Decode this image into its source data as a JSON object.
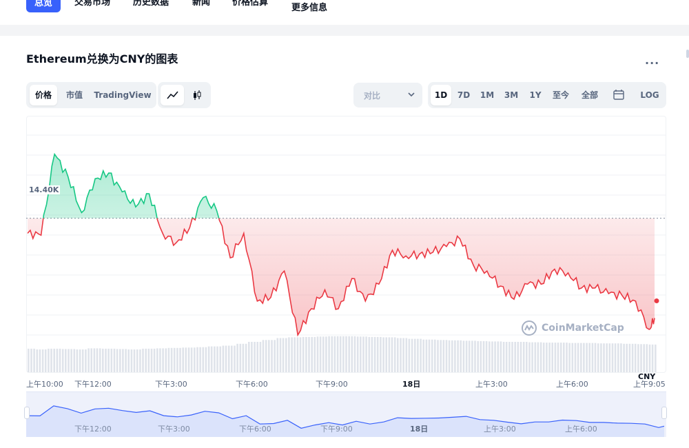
{
  "nav": {
    "items": [
      "总览",
      "交易市场",
      "历史数据",
      "新闻",
      "价格估算",
      "更多信息"
    ],
    "active": 0
  },
  "chart": {
    "title": "Ethereum兑换为CNY的图表",
    "more_label": "...",
    "type_tabs": [
      "价格",
      "市值",
      "TradingView"
    ],
    "compare_label": "对比",
    "range_tabs": [
      "1D",
      "7D",
      "1M",
      "3M",
      "1Y",
      "至今",
      "全部"
    ],
    "log_label": "LOG",
    "price_marker": "14.40K",
    "currency": "CNY",
    "watermark": "CoinMarketCap"
  },
  "colors": {
    "up": "#16c784",
    "down": "#ea3943",
    "accent": "#3861fb",
    "navigator": "#3861fb"
  },
  "icons": {
    "line_chart": "line-chart-icon",
    "candle_chart": "candlestick-icon",
    "calendar": "calendar-icon",
    "compare": "chevron-down-icon",
    "logo": "coinmarketcap-logo-icon"
  },
  "chart_data": {
    "type": "line",
    "x_ticks": [
      "上午10:00",
      "下午12:00",
      "下午3:00",
      "下午6:00",
      "下午9:00",
      "18日",
      "上午3:00",
      "上午6:00",
      "上午9:05"
    ],
    "navigator_ticks": [
      "下午12:00",
      "下午3:00",
      "下午6:00",
      "下午9:00",
      "18日",
      "上午3:00",
      "上午6:00"
    ],
    "reference_price": 14400,
    "y_range": [
      14050,
      14650
    ],
    "x_hours": [
      0,
      0.5,
      1,
      1.5,
      2,
      2.5,
      3,
      3.5,
      4,
      4.5,
      5,
      5.5,
      6,
      6.5,
      7,
      7.5,
      8,
      8.5,
      9,
      9.5,
      10,
      10.5,
      11,
      11.5,
      12,
      12.5,
      13,
      13.5,
      14,
      14.5,
      15,
      15.5,
      16,
      16.5,
      17,
      17.5,
      18,
      18.5,
      19,
      19.5,
      20,
      20.5,
      21,
      21.5,
      22,
      22.5,
      23,
      23.2
    ],
    "prices": [
      14360,
      14355,
      14570,
      14510,
      14415,
      14505,
      14520,
      14470,
      14430,
      14465,
      14360,
      14335,
      14375,
      14455,
      14420,
      14295,
      14360,
      14180,
      14190,
      14260,
      14090,
      14160,
      14210,
      14160,
      14240,
      14180,
      14225,
      14315,
      14300,
      14305,
      14310,
      14325,
      14345,
      14275,
      14260,
      14220,
      14185,
      14225,
      14225,
      14265,
      14255,
      14215,
      14215,
      14200,
      14195,
      14180,
      14105,
      14135
    ],
    "volume_relative": [
      0.62,
      0.6,
      0.62,
      0.61,
      0.6,
      0.63,
      0.62,
      0.61,
      0.6,
      0.62,
      0.63,
      0.64,
      0.65,
      0.66,
      0.68,
      0.7,
      0.75,
      0.8,
      0.85,
      0.9,
      0.92,
      0.93,
      0.94,
      0.95,
      0.95,
      0.94,
      0.93,
      0.92,
      0.9,
      0.88,
      0.86,
      0.85,
      0.84,
      0.83,
      0.82,
      0.81,
      0.8,
      0.8,
      0.79,
      0.78,
      0.78,
      0.77,
      0.77,
      0.76,
      0.76,
      0.75,
      0.74,
      0.73
    ]
  }
}
